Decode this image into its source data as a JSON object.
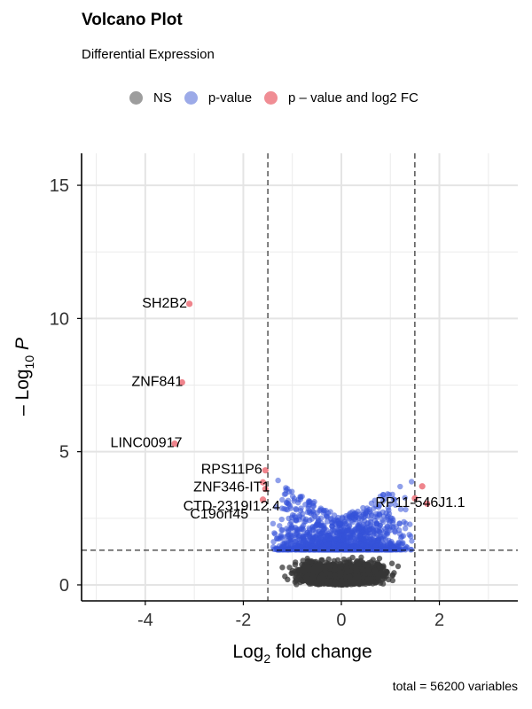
{
  "chart_data": {
    "type": "scatter",
    "title": "Volcano Plot",
    "subtitle": "Differential Expression",
    "xlabel": "Log2 fold change",
    "ylabel": "-Log10 P",
    "xlim": [
      -5.3,
      3.6
    ],
    "ylim": [
      -0.6,
      16.2
    ],
    "x_ticks": [
      -4,
      -2,
      0,
      2
    ],
    "y_ticks": [
      0,
      5,
      10,
      15
    ],
    "grid": true,
    "legend_position": "top",
    "legend": [
      {
        "label": "NS",
        "color": "#3b3b3b"
      },
      {
        "label": "p-value",
        "color": "#5a72d8"
      },
      {
        "label": "p – value and log2 FC",
        "color": "#e8505b"
      }
    ],
    "thresholds": {
      "log2fc": [
        -1.5,
        1.5
      ],
      "neg_log10_p": 1.3
    },
    "caption": "total = 56200 variables",
    "labeled_points": [
      {
        "label": "SH2B2",
        "x": -3.1,
        "y": 10.55
      },
      {
        "label": "ZNF841",
        "x": -3.25,
        "y": 7.6
      },
      {
        "label": "LINC00917",
        "x": -3.4,
        "y": 5.3
      },
      {
        "label": "RPS11P6",
        "x": -1.55,
        "y": 4.3
      },
      {
        "label": "ZNF346-IT1",
        "x": -1.55,
        "y": 3.7
      },
      {
        "label": "CTD-2319I12.4",
        "x": -1.55,
        "y": 3.2
      },
      {
        "label": "C19orf45",
        "x": -1.55,
        "y": 2.9
      },
      {
        "label": "RP11-546J1.1",
        "x": 1.7,
        "y": 3.2
      }
    ],
    "highlighted_points": [
      {
        "x": -3.1,
        "y": 10.55
      },
      {
        "x": -3.25,
        "y": 7.6
      },
      {
        "x": -3.4,
        "y": 5.3
      },
      {
        "x": -1.55,
        "y": 4.3
      },
      {
        "x": -1.6,
        "y": 3.85
      },
      {
        "x": -1.55,
        "y": 3.6
      },
      {
        "x": -1.6,
        "y": 3.2
      },
      {
        "x": 1.5,
        "y": 3.25
      },
      {
        "x": 1.65,
        "y": 3.7
      },
      {
        "x": 1.75,
        "y": 3.05
      }
    ],
    "series_summary": {
      "NS": "dense cloud x -1.5..1.5, y 0..1.3",
      "p-value": "x -1.5..1.5, y 1.3..4.7"
    }
  }
}
